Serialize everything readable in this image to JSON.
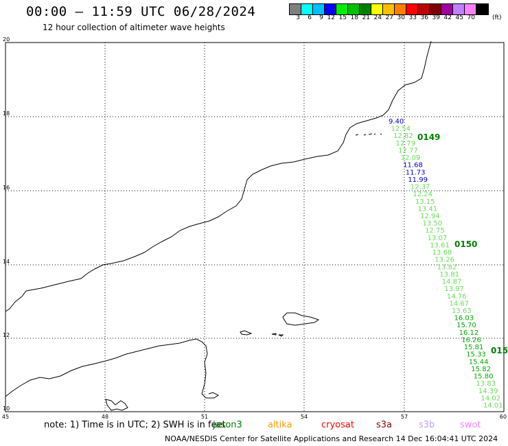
{
  "header": {
    "title": "00:00 – 11:59 UTC 06/28/2024",
    "subtitle": "12 hour collection of altimeter wave heights"
  },
  "color_scale": {
    "unit": "(ft)",
    "labels": [
      "3",
      "6",
      "9",
      "12",
      "15",
      "18",
      "21",
      "24",
      "27",
      "30",
      "33",
      "36",
      "39",
      "42",
      "45",
      "70"
    ],
    "colors": [
      "#7f7f7f",
      "#00ffff",
      "#00bfff",
      "#0000ff",
      "#00ee00",
      "#00c000",
      "#008000",
      "#ffff00",
      "#ffbf00",
      "#ff8000",
      "#ff0000",
      "#c00000",
      "#800000",
      "#a000a0",
      "#c080ff",
      "#ff80ff",
      "#000000"
    ]
  },
  "map": {
    "lat_labels": [
      "20",
      "18",
      "16",
      "14",
      "12",
      "10"
    ],
    "lon_labels": [
      "45",
      "48",
      "51",
      "54",
      "57",
      "60"
    ],
    "passes": [
      {
        "id": "0149",
        "label_color": "#008000",
        "readings": [
          {
            "v": "9.40",
            "c": "#0000cc"
          },
          {
            "v": "12.54",
            "c": "#66dd55"
          },
          {
            "v": "12.82",
            "c": "#66dd55"
          },
          {
            "v": "12.79",
            "c": "#66dd55"
          },
          {
            "v": "12.77",
            "c": "#66dd55"
          },
          {
            "v": "12.09",
            "c": "#66dd55"
          },
          {
            "v": "11.68",
            "c": "#0000cc"
          },
          {
            "v": "11.73",
            "c": "#0000cc"
          },
          {
            "v": "11.99",
            "c": "#0000cc"
          },
          {
            "v": "12.37",
            "c": "#66dd55"
          },
          {
            "v": "12.24",
            "c": "#66dd55"
          },
          {
            "v": "13.15",
            "c": "#66dd55"
          },
          {
            "v": "13.41",
            "c": "#66dd55"
          },
          {
            "v": "12.94",
            "c": "#66dd55"
          },
          {
            "v": "13.50",
            "c": "#66dd55"
          },
          {
            "v": "12.75",
            "c": "#66dd55"
          },
          {
            "v": "13.07",
            "c": "#66dd55"
          },
          {
            "v": "13.61",
            "c": "#66dd55"
          },
          {
            "v": "13.68",
            "c": "#66dd55"
          },
          {
            "v": "13.26",
            "c": "#66dd55"
          },
          {
            "v": "13.82",
            "c": "#66dd55"
          },
          {
            "v": "13.81",
            "c": "#66dd55"
          },
          {
            "v": "14.87",
            "c": "#66dd55"
          },
          {
            "v": "13.97",
            "c": "#66dd55"
          },
          {
            "v": "14.76",
            "c": "#66dd55"
          },
          {
            "v": "14.67",
            "c": "#66dd55"
          },
          {
            "v": "13.63",
            "c": "#66dd55"
          },
          {
            "v": "16.03",
            "c": "#00aa00"
          },
          {
            "v": "15.70",
            "c": "#00aa00"
          },
          {
            "v": "16.12",
            "c": "#00aa00"
          },
          {
            "v": "16.26",
            "c": "#00aa00"
          },
          {
            "v": "15.81",
            "c": "#00aa00"
          },
          {
            "v": "15.33",
            "c": "#00aa00"
          },
          {
            "v": "15.44",
            "c": "#00aa00"
          },
          {
            "v": "15.82",
            "c": "#00aa00"
          },
          {
            "v": "15.80",
            "c": "#00aa00"
          },
          {
            "v": "13.83",
            "c": "#66dd55"
          },
          {
            "v": "14.39",
            "c": "#66dd55"
          },
          {
            "v": "14.02",
            "c": "#66dd55"
          },
          {
            "v": "14.01",
            "c": "#66dd55"
          }
        ]
      },
      {
        "id": "0150",
        "label_color": "#008000"
      },
      {
        "id": "015",
        "label_color": "#008000"
      }
    ]
  },
  "footer": {
    "note": "note: 1) Time is in UTC; 2) SWH is in feet",
    "satellites": [
      {
        "name": "jason3",
        "color": "#008000"
      },
      {
        "name": "altika",
        "color": "#ff9900"
      },
      {
        "name": "cryosat",
        "color": "#ff0000"
      },
      {
        "name": "s3a",
        "color": "#8b0000"
      },
      {
        "name": "s3b",
        "color": "#c0a0ff"
      },
      {
        "name": "swot",
        "color": "#ff80ff"
      }
    ],
    "credit": "NOAA/NESDIS Center for Satellite Applications and Research   14 Dec 16:04:41 UTC 2024"
  }
}
